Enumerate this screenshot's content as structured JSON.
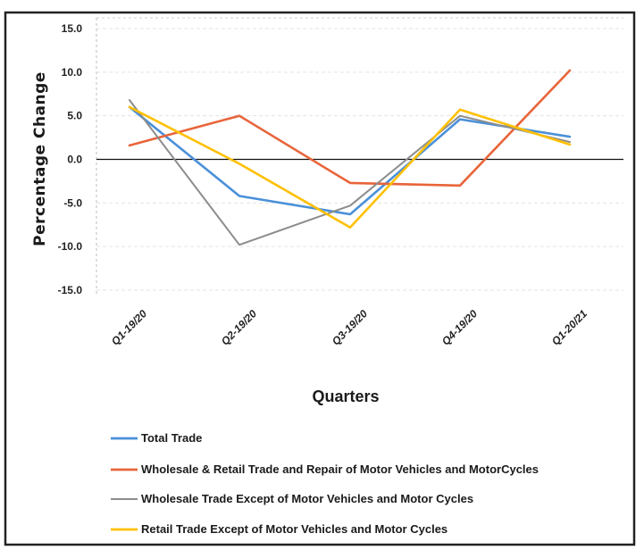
{
  "chart_data": {
    "type": "line",
    "categories": [
      "Q1-19/20",
      "Q2-19/20",
      "Q3-19/20",
      "Q4-19/20",
      "Q1-20/21"
    ],
    "series": [
      {
        "name": "Total Trade",
        "color": "#4a90d9",
        "values": [
          6.0,
          -4.2,
          -6.3,
          4.6,
          2.6
        ]
      },
      {
        "name": "Wholesale & Retail Trade and Repair of Motor Vehicles and MotorCycles",
        "color": "#e8643a",
        "values": [
          1.6,
          5.0,
          -2.7,
          -3.0,
          10.2
        ]
      },
      {
        "name": "Wholesale Trade Except of Motor Vehicles and Motor Cycles",
        "color": "#8c8c8c",
        "values": [
          6.8,
          -9.8,
          -5.3,
          5.0,
          2.0
        ]
      },
      {
        "name": "Retail Trade Except of Motor Vehicles and Motor Cycles",
        "color": "#ffc000",
        "values": [
          6.0,
          -0.5,
          -7.8,
          5.7,
          1.7
        ]
      }
    ],
    "ylim": [
      -15,
      15
    ],
    "yticks": [
      "15.0",
      "10.0",
      "5.0",
      "0.0",
      "-5.0",
      "-10.0",
      "-15.0"
    ],
    "ylabel": "Percentage Change",
    "xlabel": "Quarters",
    "grid": true,
    "legend_position": "bottom"
  }
}
